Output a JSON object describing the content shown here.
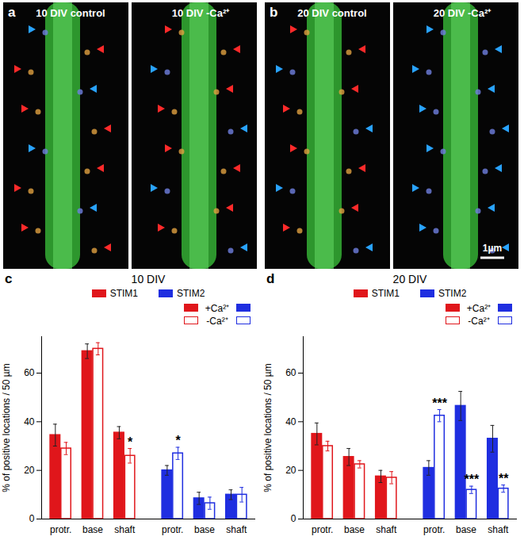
{
  "figure": {
    "images": [
      {
        "panel_label": "a",
        "labels": [
          "10 DIV  control",
          "10 DIV  -Ca²⁺"
        ]
      },
      {
        "panel_label": "b",
        "labels": [
          "20 DIV  control",
          "20 DIV  -Ca²⁺"
        ],
        "scale_bar": "1µm"
      }
    ]
  },
  "chart_data": [
    {
      "type": "bar",
      "panel_label": "c",
      "title": "10 DIV",
      "y_label": "% of positive locations / 50 µm",
      "categories": [
        "protr.",
        "base",
        "shaft",
        "protr.",
        "base",
        "shaft"
      ],
      "category_groups": [
        "STIM1",
        "STIM1",
        "STIM1",
        "STIM2",
        "STIM2",
        "STIM2"
      ],
      "groups": [
        {
          "name": "STIM1",
          "color": "#e0161b"
        },
        {
          "name": "STIM2",
          "color": "#1f2ee0"
        }
      ],
      "series": [
        {
          "name": "+Ca²⁺",
          "marker": "filled",
          "values": [
            34.5,
            69,
            35.5,
            20,
            8.5,
            10
          ],
          "errors": [
            4.5,
            3,
            2.5,
            2,
            2.5,
            2
          ],
          "significance": [
            null,
            null,
            null,
            null,
            null,
            null
          ]
        },
        {
          "name": "-Ca²⁺",
          "marker": "open",
          "values": [
            29,
            70,
            26,
            27,
            6.5,
            10
          ],
          "errors": [
            2.5,
            2.5,
            3,
            2.5,
            2.5,
            3
          ],
          "significance": [
            null,
            null,
            "*",
            "*",
            null,
            null
          ]
        }
      ],
      "ylim": [
        0,
        75
      ],
      "yticks": [
        0,
        20,
        40,
        60
      ]
    },
    {
      "type": "bar",
      "panel_label": "d",
      "title": "20 DIV",
      "y_label": "% of positive locations / 50 µm",
      "categories": [
        "protr.",
        "base",
        "shaft",
        "protr.",
        "base",
        "shaft"
      ],
      "category_groups": [
        "STIM1",
        "STIM1",
        "STIM1",
        "STIM2",
        "STIM2",
        "STIM2"
      ],
      "groups": [
        {
          "name": "STIM1",
          "color": "#e0161b"
        },
        {
          "name": "STIM2",
          "color": "#1f2ee0"
        }
      ],
      "series": [
        {
          "name": "+Ca²⁺",
          "marker": "filled",
          "values": [
            35,
            25.5,
            17.5,
            21,
            46.5,
            33
          ],
          "errors": [
            4.5,
            3.5,
            2.5,
            3,
            6,
            5.5
          ],
          "significance": [
            null,
            null,
            null,
            null,
            null,
            null
          ]
        },
        {
          "name": "-Ca²⁺",
          "marker": "open",
          "values": [
            30,
            22.5,
            17,
            42.5,
            12,
            12.5
          ],
          "errors": [
            2,
            1.5,
            2.5,
            2.5,
            1.5,
            1.5
          ],
          "significance": [
            null,
            null,
            null,
            "***",
            "***",
            "**"
          ]
        }
      ],
      "ylim": [
        0,
        75
      ],
      "yticks": [
        0,
        20,
        40,
        60
      ]
    }
  ]
}
